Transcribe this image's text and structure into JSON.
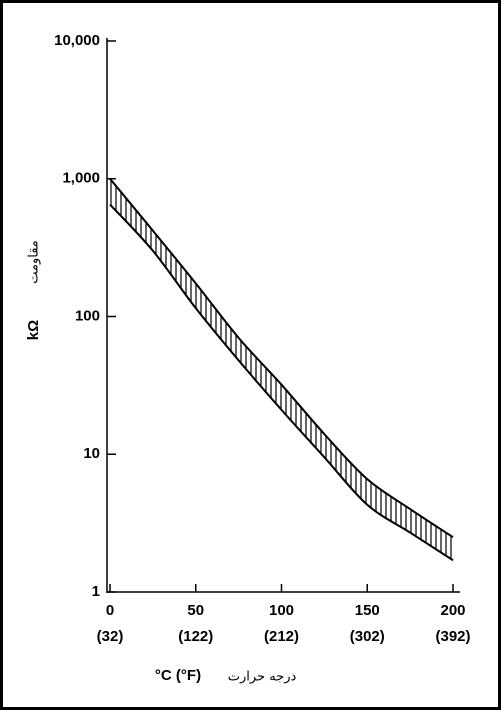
{
  "chart_data": {
    "type": "line",
    "x": [
      0,
      25,
      50,
      75,
      100,
      125,
      150,
      175,
      200
    ],
    "series": [
      {
        "color": "#000000",
        "values": [
          1000,
          420,
          174,
          70,
          32,
          14,
          6.6,
          4,
          2.5
        ]
      },
      {
        "color": "#000000",
        "values": [
          650,
          300,
          115,
          48,
          21,
          9.5,
          4.3,
          2.7,
          1.7
        ]
      }
    ],
    "xlim": [
      0,
      200
    ],
    "xticks": [
      0,
      50,
      100,
      150,
      200
    ],
    "xticks_secondary": [
      "(32)",
      "(122)",
      "(212)",
      "(302)",
      "(392)"
    ],
    "ylim": [
      1,
      10000
    ],
    "yticks": [
      {
        "value": 1,
        "label": "1"
      },
      {
        "value": 10,
        "label": "10"
      },
      {
        "value": 100,
        "label": "100"
      },
      {
        "value": 1000,
        "label": "1,000"
      },
      {
        "value": 10000,
        "label": "10,000"
      }
    ],
    "log_scale_y": true,
    "band_hatch": true,
    "ylabel": "kΩ",
    "ylabel_fa": "مقاومت",
    "xlabel": "°C  (°F)",
    "xlabel_fa": "درجه حرارت"
  }
}
